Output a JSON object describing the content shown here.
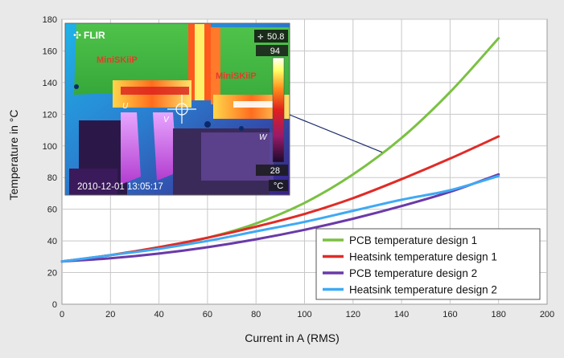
{
  "chart_data": {
    "type": "line",
    "xlabel": "Current in A (RMS)",
    "ylabel": "Temperature in °C",
    "xlim": [
      0,
      200
    ],
    "ylim": [
      0,
      180
    ],
    "xticks": [
      0,
      20,
      40,
      60,
      80,
      100,
      120,
      140,
      160,
      180,
      200
    ],
    "yticks": [
      0,
      20,
      40,
      60,
      80,
      100,
      120,
      140,
      160,
      180
    ],
    "grid": true,
    "legend_position": "bottom-right",
    "x": [
      0,
      20,
      40,
      60,
      80,
      100,
      120,
      140,
      160,
      180
    ],
    "series": [
      {
        "name": "PCB temperature design 1",
        "color": "#7ac142",
        "values": [
          27,
          31,
          36,
          42,
          51,
          64,
          82,
          105,
          134,
          168
        ]
      },
      {
        "name": "Heatsink temperature design 1",
        "color": "#e02b27",
        "values": [
          27,
          31,
          36,
          42,
          49,
          57,
          67,
          79,
          92,
          106
        ]
      },
      {
        "name": "PCB temperature design 2",
        "color": "#6a3aa8",
        "values": [
          27,
          29,
          32,
          36,
          41,
          47,
          54,
          62,
          71,
          82
        ]
      },
      {
        "name": "Heatsink temperature design 2",
        "color": "#3fa9f5",
        "values": [
          27,
          31,
          35,
          40,
          46,
          52,
          59,
          66,
          72,
          81
        ]
      }
    ],
    "annotation_pointer": {
      "x": 132,
      "y": 96
    }
  },
  "thermal_image": {
    "brand": "FLIR",
    "crosshair_value": "50.8",
    "scale_max": "94",
    "scale_min": "28",
    "scale_unit": "°C",
    "timestamp": "2010-12-01 13:05:17",
    "module_label_1": "MiniSKiiP",
    "module_label_2": "MiniSKiiP",
    "phase_labels": [
      "U",
      "V",
      "W"
    ],
    "crosshair_icon": "crosshair-icon"
  }
}
